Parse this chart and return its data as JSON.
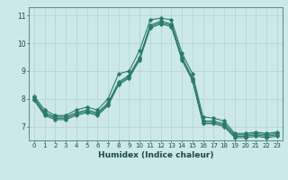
{
  "xlabel": "Humidex (Indice chaleur)",
  "bg_color": "#cce8e8",
  "grid_color": "#b8d4d4",
  "line_color": "#2a7a6a",
  "xlim": [
    -0.5,
    23.5
  ],
  "ylim": [
    6.5,
    11.3
  ],
  "yticks": [
    7,
    8,
    9,
    10,
    11
  ],
  "xticks": [
    0,
    1,
    2,
    3,
    4,
    5,
    6,
    7,
    8,
    9,
    10,
    11,
    12,
    13,
    14,
    15,
    16,
    17,
    18,
    19,
    20,
    21,
    22,
    23
  ],
  "series": [
    [
      8.1,
      7.6,
      7.4,
      7.4,
      7.6,
      7.7,
      7.6,
      8.0,
      8.9,
      9.0,
      9.75,
      10.85,
      10.9,
      10.85,
      9.65,
      8.9,
      7.35,
      7.3,
      7.2,
      6.75,
      6.75,
      6.8,
      6.75,
      6.8
    ],
    [
      8.05,
      7.5,
      7.35,
      7.35,
      7.5,
      7.6,
      7.5,
      7.85,
      8.6,
      8.85,
      9.5,
      10.65,
      10.8,
      10.7,
      9.5,
      8.75,
      7.2,
      7.2,
      7.1,
      6.7,
      6.7,
      6.75,
      6.7,
      6.75
    ],
    [
      8.0,
      7.45,
      7.3,
      7.3,
      7.45,
      7.55,
      7.45,
      7.8,
      8.55,
      8.8,
      9.45,
      10.6,
      10.75,
      10.65,
      9.45,
      8.7,
      7.15,
      7.15,
      7.05,
      6.65,
      6.65,
      6.7,
      6.65,
      6.7
    ],
    [
      7.95,
      7.4,
      7.25,
      7.25,
      7.4,
      7.5,
      7.4,
      7.75,
      8.5,
      8.75,
      9.4,
      10.55,
      10.7,
      10.6,
      9.4,
      8.65,
      7.1,
      7.1,
      7.0,
      6.6,
      6.6,
      6.65,
      6.6,
      6.65
    ]
  ]
}
